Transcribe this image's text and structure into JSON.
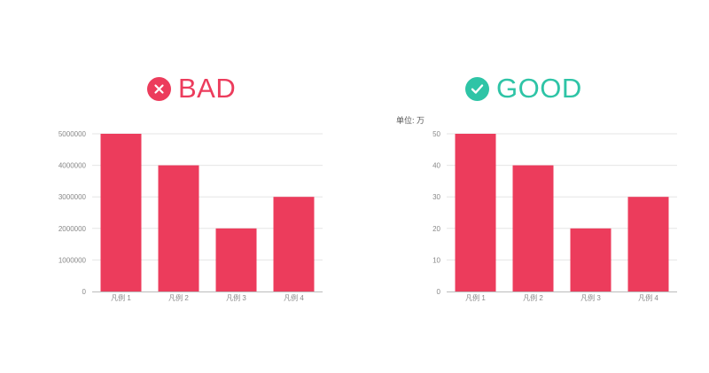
{
  "colors": {
    "bar": "#ec3c5c",
    "bad": "#ec3c5c",
    "good": "#2ec4a6",
    "grid": "#e6e6e6",
    "axis": "#bbbbbb"
  },
  "panels": {
    "bad": {
      "title": "BAD",
      "icon": "close-icon"
    },
    "good": {
      "title": "GOOD",
      "icon": "check-icon",
      "unit_label": "单位: 万"
    }
  },
  "chart_data": [
    {
      "type": "bar",
      "title": "",
      "xlabel": "",
      "ylabel": "",
      "categories": [
        "凡例 1",
        "凡例 2",
        "凡例 3",
        "凡例 4"
      ],
      "values": [
        5000000,
        4000000,
        2000000,
        3000000
      ],
      "ylim": [
        0,
        5000000
      ],
      "yticks": [
        "0",
        "1000000",
        "2000000",
        "3000000",
        "4000000",
        "5000000"
      ],
      "grid": true,
      "legend": "none"
    },
    {
      "type": "bar",
      "title": "",
      "xlabel": "",
      "ylabel": "",
      "categories": [
        "凡例 1",
        "凡例 2",
        "凡例 3",
        "凡例 4"
      ],
      "values": [
        50,
        40,
        20,
        30
      ],
      "ylim": [
        0,
        50
      ],
      "yticks": [
        "0",
        "10",
        "20",
        "30",
        "40",
        "50"
      ],
      "grid": true,
      "legend": "none"
    }
  ]
}
